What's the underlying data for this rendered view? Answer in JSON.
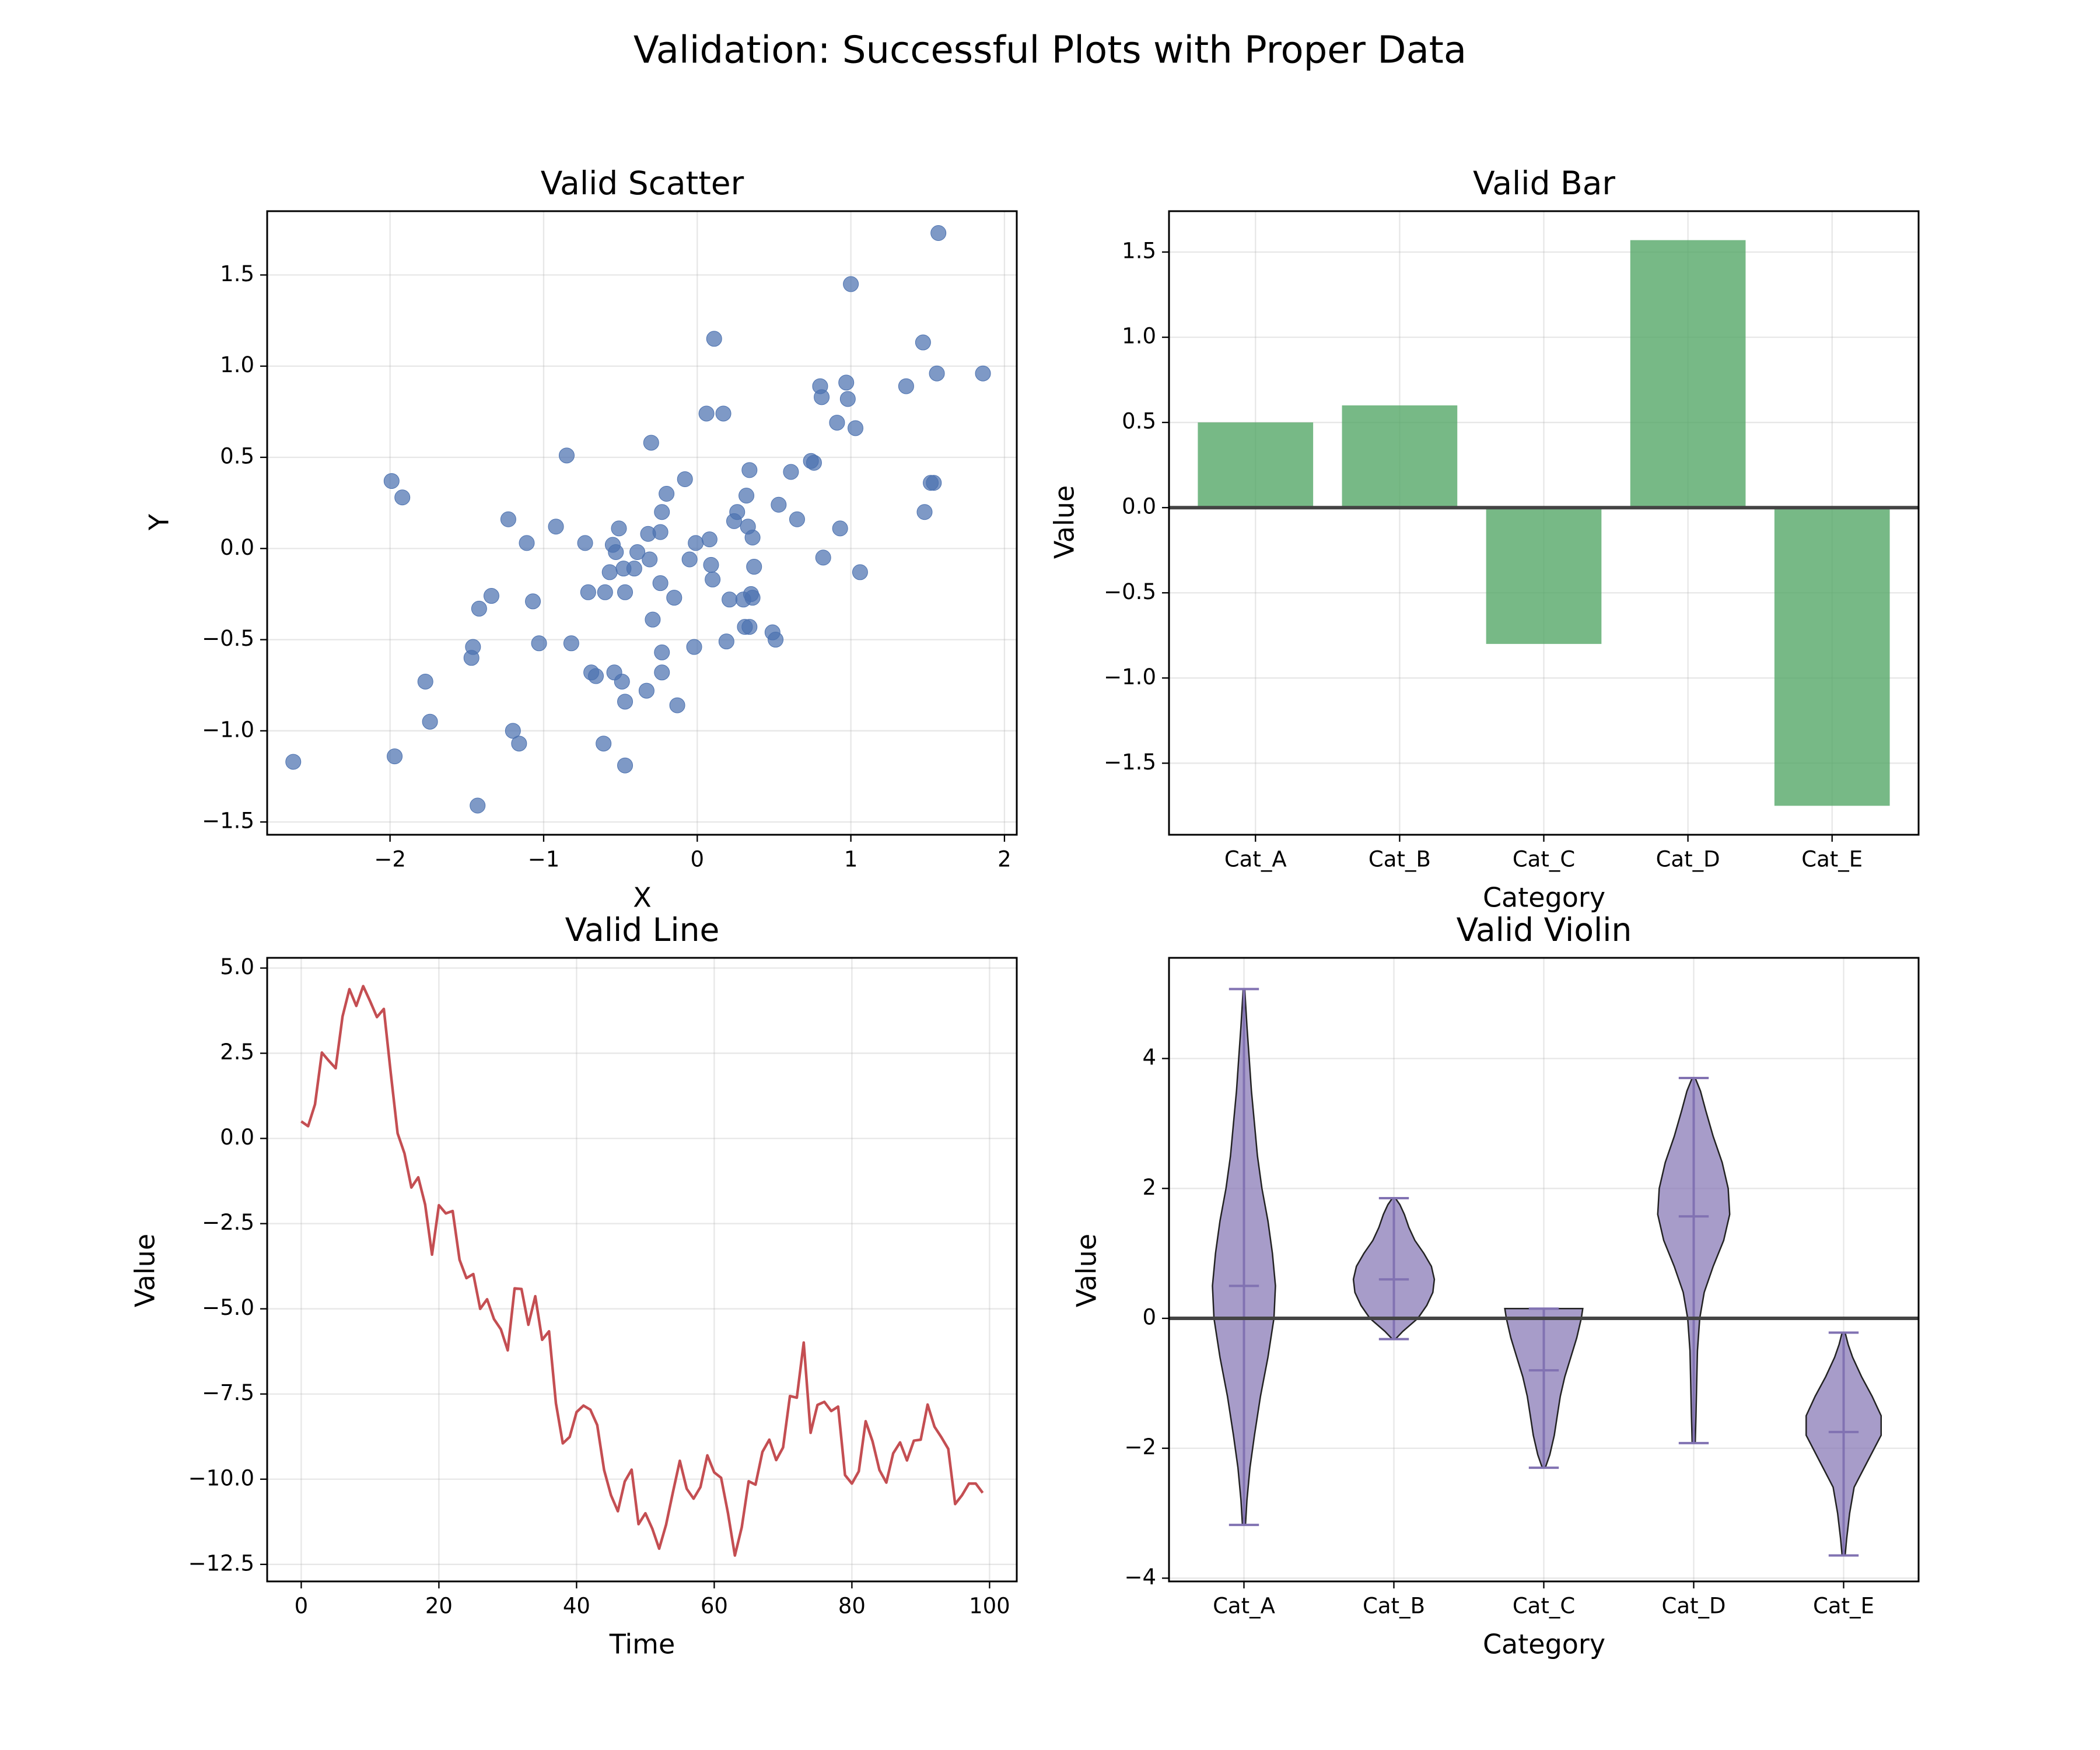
{
  "suptitle": "Validation: Successful Plots with Proper Data",
  "chart_data": [
    {
      "type": "scatter",
      "title": "Valid Scatter",
      "xlabel": "X",
      "ylabel": "Y",
      "xlim": [
        -2.8,
        2.08
      ],
      "ylim": [
        -1.57,
        1.85
      ],
      "xticks": [
        -2,
        -1,
        0,
        1,
        2
      ],
      "xtick_labels": [
        "−2",
        "−1",
        "0",
        "1",
        "2"
      ],
      "yticks": [
        -1.5,
        -1.0,
        -0.5,
        0.0,
        0.5,
        1.0,
        1.5
      ],
      "ytick_labels": [
        "−1.5",
        "−1.0",
        "−0.5",
        "0.0",
        "0.5",
        "1.0",
        "1.5"
      ],
      "grid": true,
      "color": "#4c72b0",
      "points": [
        [
          -2.63,
          -1.17
        ],
        [
          -1.99,
          0.37
        ],
        [
          -1.97,
          -1.14
        ],
        [
          -1.92,
          0.28
        ],
        [
          -1.77,
          -0.73
        ],
        [
          -1.74,
          -0.95
        ],
        [
          -1.47,
          -0.6
        ],
        [
          -1.46,
          -0.54
        ],
        [
          -1.42,
          -0.33
        ],
        [
          -1.43,
          -1.41
        ],
        [
          -1.34,
          -0.26
        ],
        [
          -1.23,
          0.16
        ],
        [
          -1.2,
          -1.0
        ],
        [
          -1.16,
          -1.07
        ],
        [
          -1.11,
          0.03
        ],
        [
          -1.07,
          -0.29
        ],
        [
          -1.03,
          -0.52
        ],
        [
          -0.92,
          0.12
        ],
        [
          -0.85,
          0.51
        ],
        [
          -0.82,
          -0.52
        ],
        [
          -0.73,
          0.03
        ],
        [
          -0.71,
          -0.24
        ],
        [
          -0.69,
          -0.68
        ],
        [
          -0.66,
          -0.7
        ],
        [
          -0.61,
          -1.07
        ],
        [
          -0.6,
          -0.24
        ],
        [
          -0.57,
          -0.13
        ],
        [
          -0.55,
          0.02
        ],
        [
          -0.54,
          -0.68
        ],
        [
          -0.53,
          -0.02
        ],
        [
          -0.51,
          0.11
        ],
        [
          -0.49,
          -0.73
        ],
        [
          -0.48,
          -0.11
        ],
        [
          -0.47,
          -0.84
        ],
        [
          -0.47,
          -1.19
        ],
        [
          -0.47,
          -0.24
        ],
        [
          -0.41,
          -0.11
        ],
        [
          -0.39,
          -0.02
        ],
        [
          -0.33,
          -0.78
        ],
        [
          -0.32,
          0.08
        ],
        [
          -0.31,
          -0.06
        ],
        [
          -0.3,
          0.58
        ],
        [
          -0.29,
          -0.39
        ],
        [
          -0.24,
          0.09
        ],
        [
          -0.24,
          -0.19
        ],
        [
          -0.23,
          -0.57
        ],
        [
          -0.23,
          -0.68
        ],
        [
          -0.23,
          0.2
        ],
        [
          -0.2,
          0.3
        ],
        [
          -0.15,
          -0.27
        ],
        [
          -0.13,
          -0.86
        ],
        [
          -0.08,
          0.38
        ],
        [
          -0.05,
          -0.06
        ],
        [
          -0.02,
          -0.54
        ],
        [
          -0.01,
          0.03
        ],
        [
          0.06,
          0.74
        ],
        [
          0.08,
          0.05
        ],
        [
          0.09,
          -0.09
        ],
        [
          0.1,
          -0.17
        ],
        [
          0.11,
          1.15
        ],
        [
          0.17,
          0.74
        ],
        [
          0.19,
          -0.51
        ],
        [
          0.21,
          -0.28
        ],
        [
          0.24,
          0.15
        ],
        [
          0.26,
          0.2
        ],
        [
          0.3,
          -0.28
        ],
        [
          0.31,
          -0.43
        ],
        [
          0.32,
          0.29
        ],
        [
          0.33,
          0.12
        ],
        [
          0.34,
          -0.43
        ],
        [
          0.34,
          0.43
        ],
        [
          0.35,
          -0.25
        ],
        [
          0.36,
          -0.27
        ],
        [
          0.36,
          0.06
        ],
        [
          0.37,
          -0.1
        ],
        [
          0.49,
          -0.46
        ],
        [
          0.51,
          -0.5
        ],
        [
          0.53,
          0.24
        ],
        [
          0.61,
          0.42
        ],
        [
          0.65,
          0.16
        ],
        [
          0.74,
          0.48
        ],
        [
          0.76,
          0.47
        ],
        [
          0.8,
          0.89
        ],
        [
          0.81,
          0.83
        ],
        [
          0.82,
          -0.05
        ],
        [
          0.91,
          0.69
        ],
        [
          0.93,
          0.11
        ],
        [
          0.97,
          0.91
        ],
        [
          0.98,
          0.82
        ],
        [
          1.0,
          1.45
        ],
        [
          1.03,
          0.66
        ],
        [
          1.06,
          -0.13
        ],
        [
          1.36,
          0.89
        ],
        [
          1.47,
          1.13
        ],
        [
          1.48,
          0.2
        ],
        [
          1.52,
          0.36
        ],
        [
          1.54,
          0.36
        ],
        [
          1.56,
          0.96
        ],
        [
          1.57,
          1.73
        ],
        [
          1.86,
          0.96
        ]
      ]
    },
    {
      "type": "bar",
      "title": "Valid Bar",
      "xlabel": "Category",
      "ylabel": "Value",
      "categories": [
        "Cat_A",
        "Cat_B",
        "Cat_C",
        "Cat_D",
        "Cat_E"
      ],
      "values": [
        0.5,
        0.6,
        -0.8,
        1.57,
        -1.75
      ],
      "ylim": [
        -1.92,
        1.74
      ],
      "yticks": [
        -1.5,
        -1.0,
        -0.5,
        0.0,
        0.5,
        1.0,
        1.5
      ],
      "ytick_labels": [
        "−1.5",
        "−1.0",
        "−0.5",
        "0.0",
        "0.5",
        "1.0",
        "1.5"
      ],
      "grid": true,
      "color": "#55a868",
      "zero_line_color": "#444444"
    },
    {
      "type": "line",
      "title": "Valid Line",
      "xlabel": "Time",
      "ylabel": "Value",
      "xlim": [
        -4.95,
        103.95
      ],
      "ylim": [
        -13.0,
        5.3
      ],
      "xticks": [
        0,
        20,
        40,
        60,
        80,
        100
      ],
      "xtick_labels": [
        "0",
        "20",
        "40",
        "60",
        "80",
        "100"
      ],
      "yticks": [
        -12.5,
        -10.0,
        -7.5,
        -5.0,
        -2.5,
        0.0,
        2.5,
        5.0
      ],
      "ytick_labels": [
        "−12.5",
        "−10.0",
        "−7.5",
        "−5.0",
        "−2.5",
        "0.0",
        "2.5",
        "5.0"
      ],
      "grid": true,
      "color": "#c44e52",
      "x": [
        0,
        1,
        2,
        3,
        4,
        5,
        6,
        7,
        8,
        9,
        10,
        11,
        12,
        13,
        14,
        15,
        16,
        17,
        18,
        19,
        20,
        21,
        22,
        23,
        24,
        25,
        26,
        27,
        28,
        29,
        30,
        31,
        32,
        33,
        34,
        35,
        36,
        37,
        38,
        39,
        40,
        41,
        42,
        43,
        44,
        45,
        46,
        47,
        48,
        49,
        50,
        51,
        52,
        53,
        54,
        55,
        56,
        57,
        58,
        59,
        60,
        61,
        62,
        63,
        64,
        65,
        66,
        67,
        68,
        69,
        70,
        71,
        72,
        73,
        74,
        75,
        76,
        77,
        78,
        79,
        80,
        81,
        82,
        83,
        84,
        85,
        86,
        87,
        88,
        89,
        90,
        91,
        92,
        93,
        94,
        95,
        96,
        97,
        98,
        99
      ],
      "y": [
        0.5,
        0.36,
        1.0,
        2.52,
        2.28,
        2.06,
        3.58,
        4.38,
        3.89,
        4.47,
        4.03,
        3.56,
        3.8,
        1.93,
        0.15,
        -0.44,
        -1.44,
        -1.14,
        -1.94,
        -3.41,
        -1.96,
        -2.2,
        -2.13,
        -3.56,
        -4.1,
        -3.98,
        -5.0,
        -4.72,
        -5.3,
        -5.6,
        -6.22,
        -4.4,
        -4.42,
        -5.47,
        -4.63,
        -5.91,
        -5.66,
        -7.77,
        -8.95,
        -8.76,
        -8.03,
        -7.84,
        -7.96,
        -8.41,
        -9.73,
        -10.47,
        -10.94,
        -10.07,
        -9.72,
        -11.32,
        -11.0,
        -11.45,
        -12.04,
        -11.34,
        -10.38,
        -9.46,
        -10.28,
        -10.57,
        -10.23,
        -9.3,
        -9.8,
        -9.96,
        -11.0,
        -12.24,
        -11.41,
        -10.06,
        -10.16,
        -9.2,
        -8.84,
        -9.44,
        -9.07,
        -7.56,
        -7.61,
        -5.99,
        -8.64,
        -7.82,
        -7.73,
        -8.0,
        -7.87,
        -9.88,
        -10.13,
        -9.77,
        -8.3,
        -8.89,
        -9.73,
        -10.1,
        -9.24,
        -8.92,
        -9.45,
        -8.87,
        -8.84,
        -7.81,
        -8.46,
        -8.77,
        -9.11,
        -10.73,
        -10.47,
        -10.13,
        -10.13,
        -10.4
      ]
    },
    {
      "type": "violin",
      "title": "Valid Violin",
      "xlabel": "Category",
      "ylabel": "Value",
      "categories": [
        "Cat_A",
        "Cat_B",
        "Cat_C",
        "Cat_D",
        "Cat_E"
      ],
      "ylim": [
        -4.05,
        5.55
      ],
      "yticks": [
        -4,
        -2,
        0,
        2,
        4
      ],
      "ytick_labels": [
        "−4",
        "−2",
        "0",
        "2",
        "4"
      ],
      "grid": true,
      "color": "#8172b2",
      "zero_line_color": "#444444",
      "violins": [
        {
          "min": -3.18,
          "max": 5.07,
          "mean": 0.5,
          "profile": [
            [
              -3.18,
              0.01
            ],
            [
              -2.8,
              0.02
            ],
            [
              -2.3,
              0.04
            ],
            [
              -1.8,
              0.07
            ],
            [
              -1.2,
              0.11
            ],
            [
              -0.6,
              0.16
            ],
            [
              0.0,
              0.2
            ],
            [
              0.5,
              0.21
            ],
            [
              1.0,
              0.19
            ],
            [
              1.5,
              0.16
            ],
            [
              2.0,
              0.12
            ],
            [
              2.5,
              0.09
            ],
            [
              3.0,
              0.07
            ],
            [
              3.5,
              0.05
            ],
            [
              4.0,
              0.035
            ],
            [
              4.5,
              0.02
            ],
            [
              5.07,
              0.005
            ]
          ]
        },
        {
          "min": -0.32,
          "max": 1.85,
          "mean": 0.6,
          "profile": [
            [
              -0.32,
              0.01
            ],
            [
              -0.2,
              0.06
            ],
            [
              0.0,
              0.16
            ],
            [
              0.2,
              0.22
            ],
            [
              0.4,
              0.26
            ],
            [
              0.6,
              0.27
            ],
            [
              0.8,
              0.25
            ],
            [
              1.0,
              0.2
            ],
            [
              1.2,
              0.14
            ],
            [
              1.4,
              0.1
            ],
            [
              1.6,
              0.07
            ],
            [
              1.75,
              0.04
            ],
            [
              1.85,
              0.01
            ]
          ]
        },
        {
          "min": -2.3,
          "max": 0.15,
          "mean": -0.8,
          "profile": [
            [
              -2.3,
              0.01
            ],
            [
              -2.1,
              0.04
            ],
            [
              -1.8,
              0.07
            ],
            [
              -1.5,
              0.09
            ],
            [
              -1.2,
              0.11
            ],
            [
              -0.9,
              0.14
            ],
            [
              -0.6,
              0.18
            ],
            [
              -0.3,
              0.22
            ],
            [
              0.0,
              0.25
            ],
            [
              0.15,
              0.26
            ]
          ]
        },
        {
          "min": -1.92,
          "max": 3.7,
          "mean": 1.57,
          "profile": [
            [
              -1.92,
              0.01
            ],
            [
              -1.5,
              0.015
            ],
            [
              -1.0,
              0.02
            ],
            [
              -0.5,
              0.025
            ],
            [
              0.0,
              0.04
            ],
            [
              0.4,
              0.07
            ],
            [
              0.8,
              0.13
            ],
            [
              1.2,
              0.2
            ],
            [
              1.6,
              0.24
            ],
            [
              2.0,
              0.23
            ],
            [
              2.4,
              0.19
            ],
            [
              2.8,
              0.13
            ],
            [
              3.2,
              0.08
            ],
            [
              3.5,
              0.045
            ],
            [
              3.7,
              0.01
            ]
          ]
        },
        {
          "min": -3.65,
          "max": -0.22,
          "mean": -1.75,
          "profile": [
            [
              -3.65,
              0.01
            ],
            [
              -3.4,
              0.02
            ],
            [
              -3.0,
              0.04
            ],
            [
              -2.6,
              0.07
            ],
            [
              -2.2,
              0.16
            ],
            [
              -1.8,
              0.25
            ],
            [
              -1.5,
              0.25
            ],
            [
              -1.2,
              0.19
            ],
            [
              -0.9,
              0.12
            ],
            [
              -0.6,
              0.06
            ],
            [
              -0.4,
              0.03
            ],
            [
              -0.22,
              0.01
            ]
          ]
        }
      ]
    }
  ]
}
